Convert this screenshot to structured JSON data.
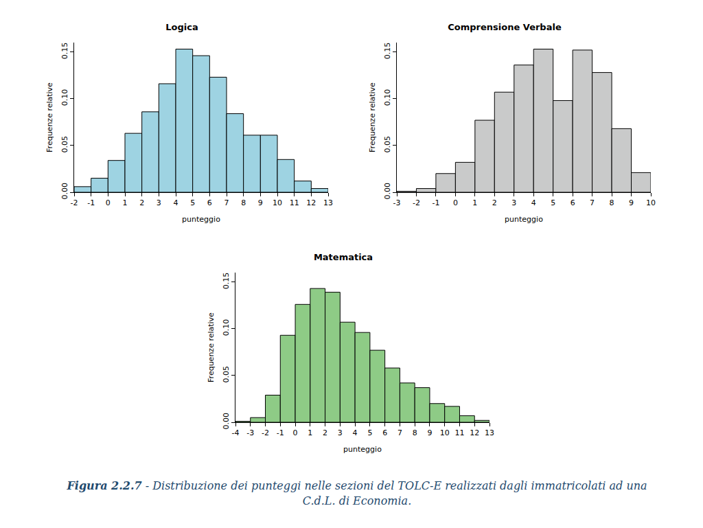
{
  "chart_data": [
    {
      "type": "histogram",
      "title": "Logica",
      "x_label": "punteggio",
      "y_label": "Frequenze relative",
      "bins": [
        -2,
        -1,
        0,
        1,
        2,
        3,
        4,
        5,
        6,
        7,
        8,
        9,
        10,
        11,
        12,
        13
      ],
      "values": [
        0.006,
        0.015,
        0.034,
        0.063,
        0.086,
        0.116,
        0.153,
        0.146,
        0.123,
        0.084,
        0.061,
        0.061,
        0.035,
        0.012,
        0.004
      ],
      "color": "#9ed3e2",
      "xlim": [
        -2,
        13
      ],
      "xticks": [
        -2,
        -1,
        0,
        1,
        2,
        3,
        4,
        5,
        6,
        7,
        8,
        9,
        10,
        11,
        12,
        13
      ],
      "ylim": [
        0,
        0.16
      ],
      "yticks": [
        {
          "value": 0,
          "label": "0.00"
        },
        0.05,
        {
          "value": 0.1,
          "label": "0.10"
        },
        0.15
      ],
      "grid": false
    },
    {
      "type": "histogram",
      "title": "Comprensione Verbale",
      "x_label": "punteggio",
      "y_label": "Frequenze relative",
      "bins": [
        -3,
        -2,
        -1,
        0,
        1,
        2,
        3,
        4,
        5,
        6,
        7,
        8,
        9,
        10
      ],
      "values": [
        0.001,
        0.004,
        0.02,
        0.032,
        0.077,
        0.107,
        0.136,
        0.153,
        0.098,
        0.152,
        0.128,
        0.068,
        0.021
      ],
      "color": "#c9caca",
      "xlim": [
        -3,
        10
      ],
      "xticks": [
        -3,
        -2,
        -1,
        0,
        1,
        2,
        3,
        4,
        5,
        6,
        7,
        8,
        9,
        10
      ],
      "ylim": [
        0,
        0.16
      ],
      "yticks": [
        {
          "value": 0,
          "label": "0.00"
        },
        0.05,
        {
          "value": 0.1,
          "label": "0.10"
        },
        0.15
      ],
      "grid": false
    },
    {
      "type": "histogram",
      "title": "Matematica",
      "x_label": "punteggio",
      "y_label": "Frequenze relative",
      "bins": [
        -4,
        -3,
        -2,
        -1,
        0,
        1,
        2,
        3,
        4,
        5,
        6,
        7,
        8,
        9,
        10,
        11,
        12,
        13
      ],
      "values": [
        0.001,
        0.005,
        0.029,
        0.093,
        0.126,
        0.143,
        0.139,
        0.107,
        0.096,
        0.077,
        0.058,
        0.042,
        0.037,
        0.02,
        0.017,
        0.007,
        0.002
      ],
      "color": "#8ecb86",
      "xlim": [
        -4,
        13
      ],
      "xticks": [
        -4,
        -3,
        -2,
        -1,
        0,
        1,
        2,
        3,
        4,
        5,
        6,
        7,
        8,
        9,
        10,
        11,
        12,
        13
      ],
      "ylim": [
        0,
        0.16
      ],
      "yticks": [
        {
          "value": 0,
          "label": "0.00"
        },
        0.05,
        {
          "value": 0.1,
          "label": "0.10"
        },
        0.15
      ],
      "grid": false
    }
  ],
  "caption": {
    "label": "Figura 2.2.7",
    "text": "- Distribuzione dei punteggi nelle sezioni del TOLC-E realizzati dagli immatricolati ad una C.d.L. di Economia."
  }
}
